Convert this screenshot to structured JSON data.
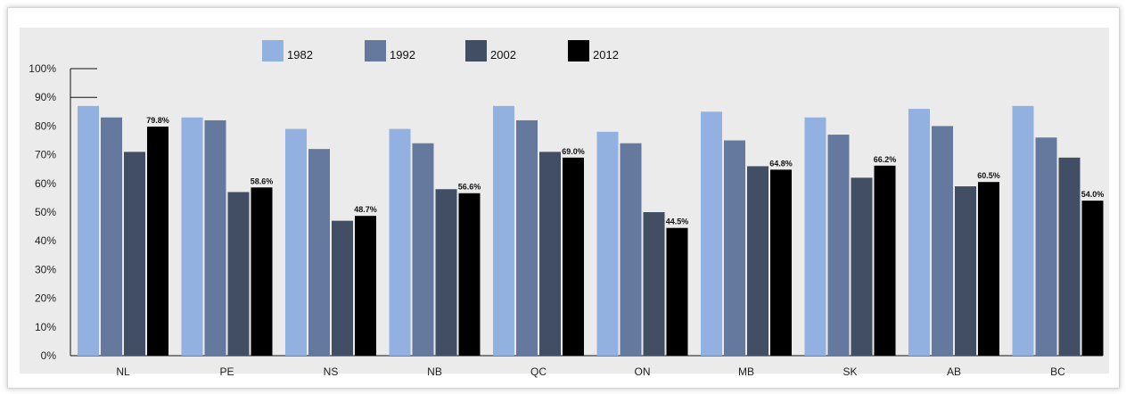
{
  "chart_data": {
    "type": "bar",
    "title": "",
    "xlabel": "",
    "ylabel": "",
    "ylim": [
      0,
      100
    ],
    "y_ticks": [
      "0%",
      "10%",
      "20%",
      "30%",
      "40%",
      "50%",
      "60%",
      "70%",
      "80%",
      "90%",
      "100%"
    ],
    "categories": [
      "NL",
      "PE",
      "NS",
      "NB",
      "QC",
      "ON",
      "MB",
      "SK",
      "AB",
      "BC"
    ],
    "series": [
      {
        "name": "1982",
        "color": "#92b0e0",
        "values": [
          87,
          83,
          79,
          79,
          87,
          78,
          85,
          83,
          86,
          87
        ]
      },
      {
        "name": "1992",
        "color": "#65799e",
        "values": [
          83,
          82,
          72,
          74,
          82,
          74,
          75,
          77,
          80,
          76
        ]
      },
      {
        "name": "2002",
        "color": "#414e64",
        "values": [
          71,
          57,
          47,
          58,
          71,
          50,
          66,
          62,
          59,
          69
        ]
      },
      {
        "name": "2012",
        "color": "#000000",
        "values": [
          79.8,
          58.6,
          48.7,
          56.6,
          69.0,
          44.5,
          64.8,
          66.2,
          60.5,
          54.0
        ]
      }
    ],
    "data_labels": [
      "79.8%",
      "58.6%",
      "48.7%",
      "56.6%",
      "69.0%",
      "44.5%",
      "64.8%",
      "66.2%",
      "60.5%",
      "54.0%"
    ],
    "grid": false,
    "legend_position": "top-left"
  }
}
